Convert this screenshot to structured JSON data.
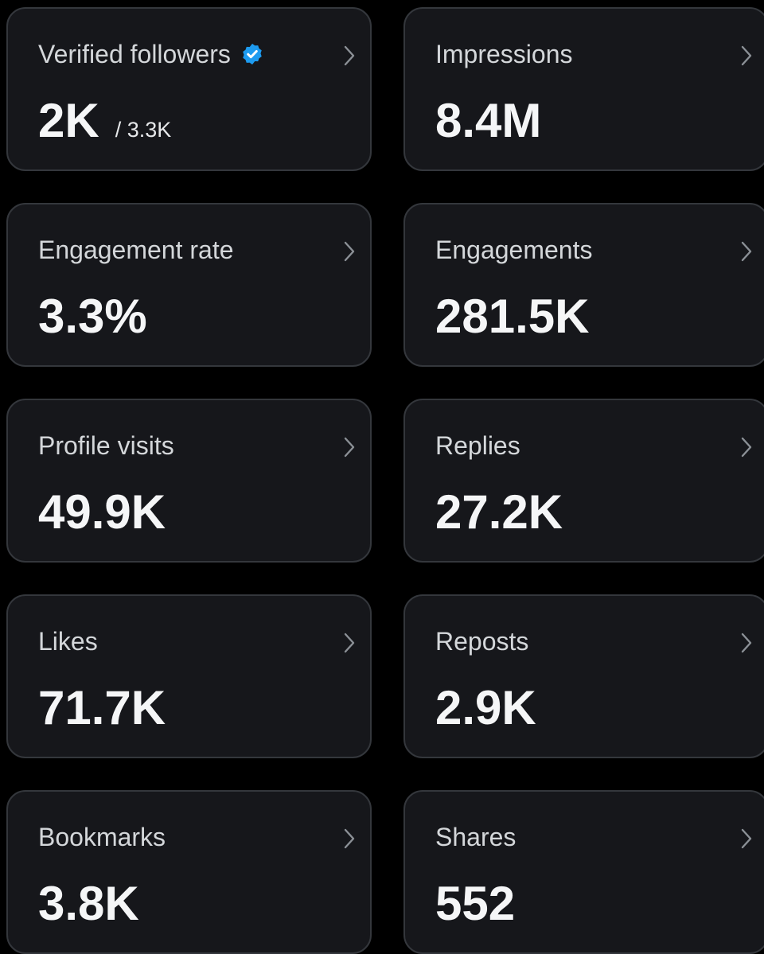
{
  "cards": [
    {
      "label": "Verified followers",
      "verified": true,
      "value": "2K",
      "secondary": "/ 3.3K"
    },
    {
      "label": "Impressions",
      "value": "8.4M"
    },
    {
      "label": "Engagement rate",
      "value": "3.3%"
    },
    {
      "label": "Engagements",
      "value": "281.5K"
    },
    {
      "label": "Profile visits",
      "value": "49.9K"
    },
    {
      "label": "Replies",
      "value": "27.2K"
    },
    {
      "label": "Likes",
      "value": "71.7K"
    },
    {
      "label": "Reposts",
      "value": "2.9K"
    },
    {
      "label": "Bookmarks",
      "value": "3.8K"
    },
    {
      "label": "Shares",
      "value": "552"
    }
  ]
}
